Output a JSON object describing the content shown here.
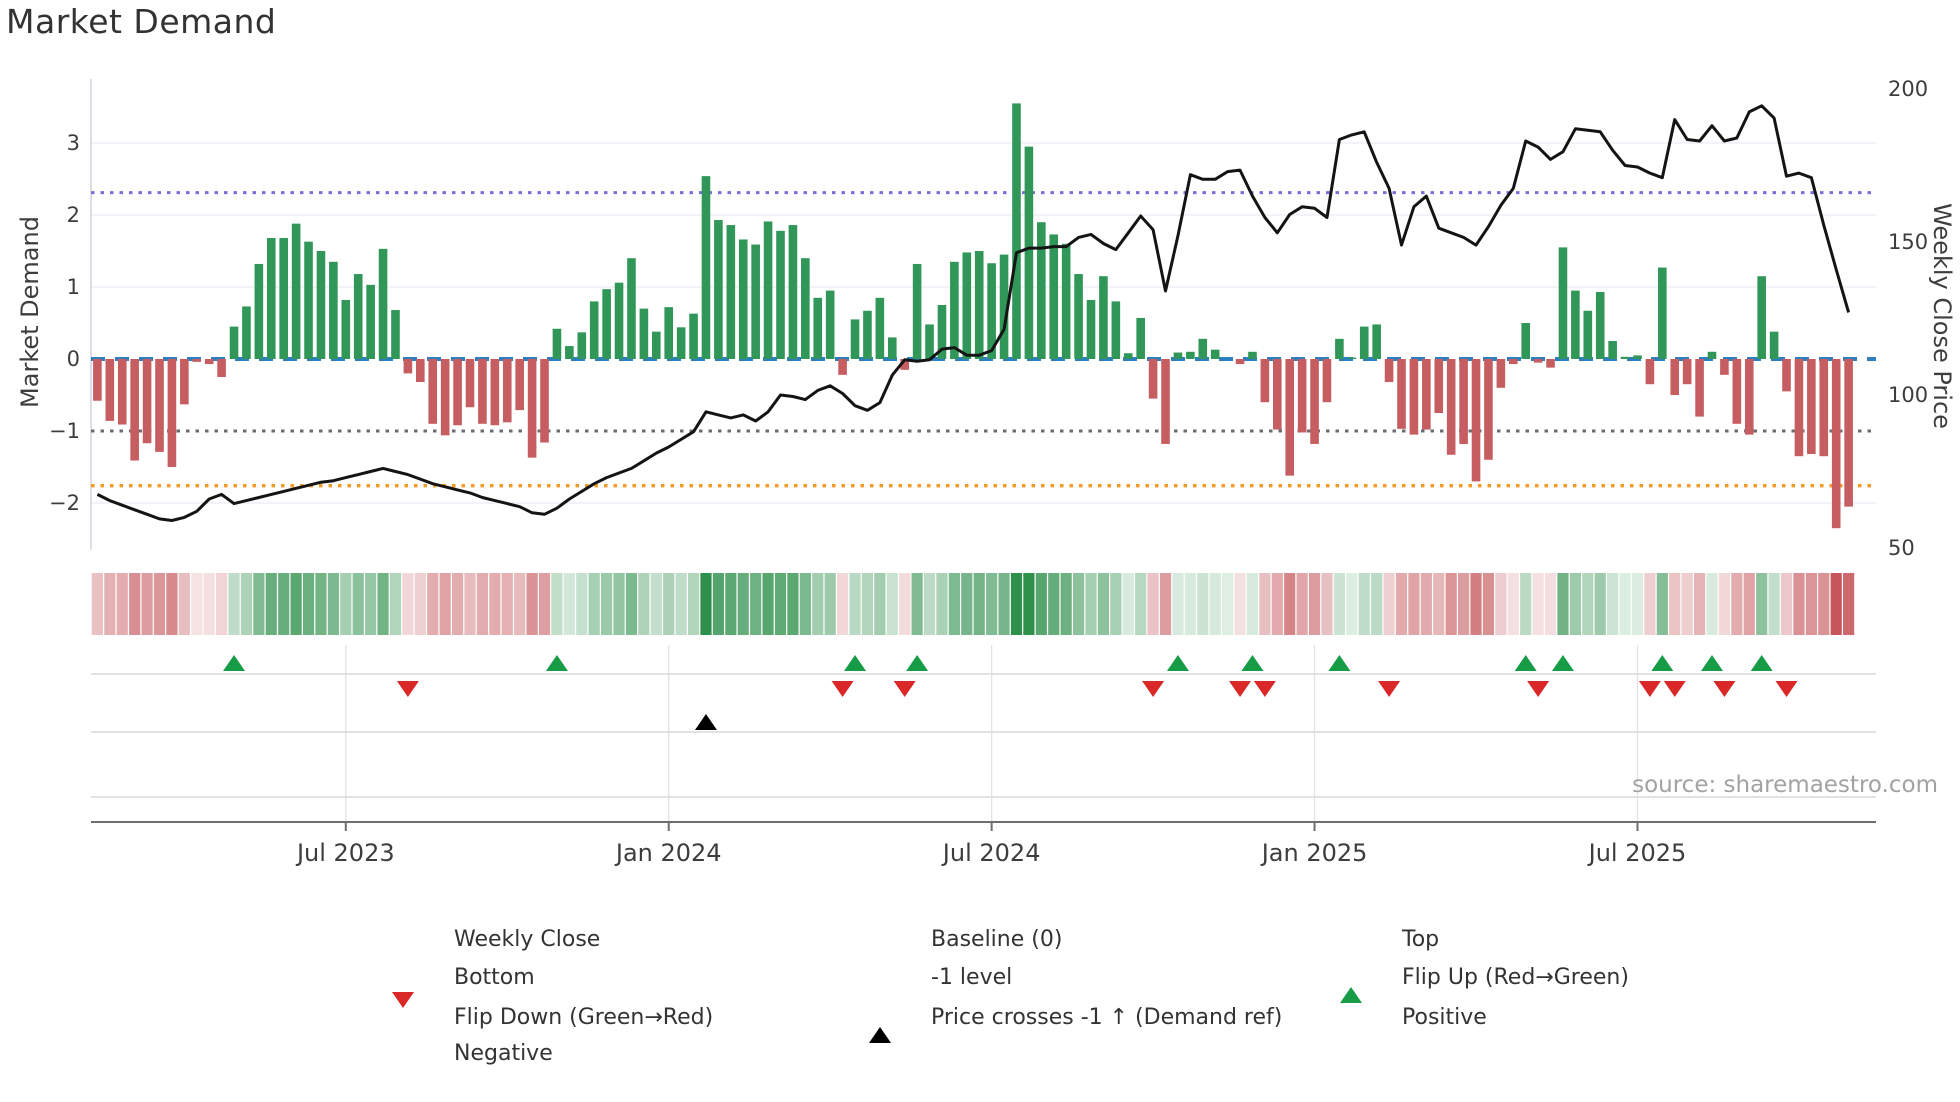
{
  "title": "Market Demand",
  "source": "source: sharemaestro.com",
  "axes": {
    "left_label": "Market Demand",
    "right_label": "Weekly Close Price",
    "left_ticks": [
      3,
      2,
      1,
      0,
      -1,
      -2
    ],
    "right_ticks": [
      200,
      150,
      100,
      50
    ],
    "x_ticks": [
      "Jul 2023",
      "Jan 2024",
      "Jul 2024",
      "Jan 2025",
      "Jul 2025"
    ]
  },
  "colors": {
    "bar_positive": "#309758",
    "bar_negative": "#c65d61",
    "price_line": "#141414",
    "baseline_blue": "#2d7fc0",
    "top_purple": "#7b6fd9",
    "bottom_orange": "#f5991f",
    "minus_one_gray": "#696d73",
    "flip_up_green": "#169c46",
    "flip_down_red": "#da2828",
    "price_cross_black": "#000000",
    "positive_dot_green": "#1e8c3c",
    "negative_dot_red": "#a8242b",
    "heat_green_base": "40,140,70",
    "heat_red_base": "193,74,79",
    "grid": "#ebebf4",
    "panel_grid": "#d9d9d9",
    "panel_axis": "#6e6e6e",
    "tick_text": "#3d3d3d"
  },
  "legend": {
    "items": [
      {
        "label": "Weekly Close",
        "marker": "line-solid-black"
      },
      {
        "label": "Baseline (0)",
        "marker": "dash-blue"
      },
      {
        "label": "Top",
        "marker": "dot-purple"
      },
      {
        "label": "Bottom",
        "marker": "dot-orange"
      },
      {
        "label": "-1 level",
        "marker": "dot-gray"
      },
      {
        "label": "Flip Up (Red→Green)",
        "marker": "triangle-up-green"
      },
      {
        "label": "Flip Down (Green→Red)",
        "marker": "triangle-down-red"
      },
      {
        "label": "Price crosses -1 ↑ (Demand ref)",
        "marker": "triangle-up-black"
      },
      {
        "label": "Positive",
        "marker": "circle-green"
      },
      {
        "label": "Negative",
        "marker": "circle-darkred"
      }
    ]
  },
  "chart_data": {
    "type": "bar+line",
    "x_unit": "week",
    "weeks": 142,
    "x_tick_labels": [
      "Jul 2023",
      "Jan 2024",
      "Jul 2024",
      "Jan 2025",
      "Jul 2025"
    ],
    "x_tick_weeks": [
      20,
      46,
      72,
      98,
      124
    ],
    "left_axis": {
      "label": "Market Demand",
      "ticks": [
        3,
        2,
        1,
        0,
        -1,
        -2
      ],
      "range": [
        -2.65,
        3.89
      ]
    },
    "right_axis": {
      "label": "Weekly Close Price",
      "ticks": [
        200,
        150,
        100,
        50
      ],
      "range": [
        49.3,
        203.3
      ]
    },
    "reference_lines": {
      "baseline": 0,
      "top": 2.31,
      "minus_one": -1,
      "bottom": -1.76
    },
    "grid_levels": [
      3,
      2,
      1,
      -2
    ],
    "series": [
      {
        "name": "Market Demand",
        "type": "bar",
        "axis": "left",
        "values": [
          -0.58,
          -0.86,
          -0.91,
          -1.41,
          -1.17,
          -1.29,
          -1.5,
          -0.63,
          -0.04,
          -0.07,
          -0.25,
          0.45,
          0.73,
          1.32,
          1.68,
          1.68,
          1.88,
          1.63,
          1.5,
          1.35,
          0.82,
          1.18,
          1.03,
          1.53,
          0.68,
          -0.2,
          -0.32,
          -0.9,
          -1.06,
          -0.92,
          -0.67,
          -0.9,
          -0.92,
          -0.88,
          -0.71,
          -1.37,
          -1.16,
          0.42,
          0.18,
          0.37,
          0.8,
          0.97,
          1.06,
          1.4,
          0.7,
          0.38,
          0.72,
          0.44,
          0.63,
          2.54,
          1.93,
          1.86,
          1.66,
          1.59,
          1.91,
          1.78,
          1.86,
          1.4,
          0.85,
          0.95,
          -0.22,
          0.55,
          0.67,
          0.85,
          0.3,
          -0.15,
          1.32,
          0.48,
          0.75,
          1.35,
          1.48,
          1.5,
          1.33,
          1.45,
          3.55,
          2.95,
          1.9,
          1.73,
          1.6,
          1.18,
          0.82,
          1.15,
          0.8,
          0.08,
          0.57,
          -0.55,
          -1.18,
          0.09,
          0.1,
          0.28,
          0.13,
          0.0,
          -0.07,
          0.1,
          -0.6,
          -0.98,
          -1.62,
          -1.02,
          -1.18,
          -0.6,
          0.28,
          0.02,
          0.45,
          0.48,
          -0.32,
          -0.97,
          -1.05,
          -0.98,
          -0.75,
          -1.33,
          -1.18,
          -1.7,
          -1.4,
          -0.4,
          -0.07,
          0.5,
          -0.05,
          -0.12,
          1.55,
          0.95,
          0.67,
          0.93,
          0.25,
          0.03,
          0.05,
          -0.35,
          1.27,
          -0.5,
          -0.35,
          -0.8,
          0.1,
          -0.22,
          -0.9,
          -1.05,
          1.15,
          0.38,
          -0.45,
          -1.35,
          -1.32,
          -1.35,
          -2.35,
          -2.05
        ]
      },
      {
        "name": "Weekly Close",
        "type": "line",
        "axis": "right",
        "values": [
          67.5,
          65.5,
          64,
          62.5,
          61,
          59.5,
          59,
          60,
          62,
          66,
          67.5,
          64.5,
          65.5,
          66.5,
          67.5,
          68.5,
          69.5,
          70.5,
          71.5,
          72,
          73,
          74,
          75,
          76,
          75,
          74,
          72.5,
          71,
          70,
          69,
          68,
          66.5,
          65.5,
          64.5,
          63.5,
          61.5,
          61,
          63,
          66,
          68.5,
          71,
          73,
          74.5,
          76,
          78.5,
          81,
          83,
          85.5,
          88,
          94.5,
          93.5,
          92.5,
          93.5,
          91.5,
          94.5,
          100,
          99.5,
          98.5,
          101.5,
          103,
          100.5,
          96.5,
          95,
          97.5,
          106.5,
          111.5,
          111,
          111.5,
          115,
          115.5,
          113,
          113,
          114.5,
          121.5,
          146.5,
          148,
          148,
          148.5,
          148.5,
          151.5,
          152.5,
          149.5,
          147.5,
          153,
          158.5,
          154,
          134,
          152,
          172,
          170.5,
          170.5,
          173,
          173.5,
          165,
          158,
          153,
          159,
          161.5,
          161,
          158,
          183.5,
          185,
          186,
          176,
          167.5,
          149,
          161.5,
          165,
          154.5,
          153,
          151.5,
          149,
          155,
          162,
          167.5,
          183,
          181,
          177,
          179.5,
          187,
          186.5,
          186,
          180,
          175,
          174.5,
          172.5,
          171,
          190,
          183.5,
          183,
          188,
          183,
          184,
          192.5,
          194.5,
          190.5,
          171.5,
          172.5,
          171,
          155.5,
          141,
          127
        ]
      }
    ],
    "heatmap": {
      "source": "demand",
      "note": "weekly strip colored red-to-green by demand value"
    },
    "markers": {
      "flip_up_weeks": [
        11,
        37,
        61,
        66,
        87,
        93,
        100,
        115,
        118,
        126,
        130,
        134
      ],
      "flip_down_weeks": [
        25,
        60,
        65,
        85,
        92,
        94,
        104,
        116,
        125,
        127,
        131,
        136
      ],
      "price_cross_minus1_weeks": [
        49
      ]
    }
  }
}
